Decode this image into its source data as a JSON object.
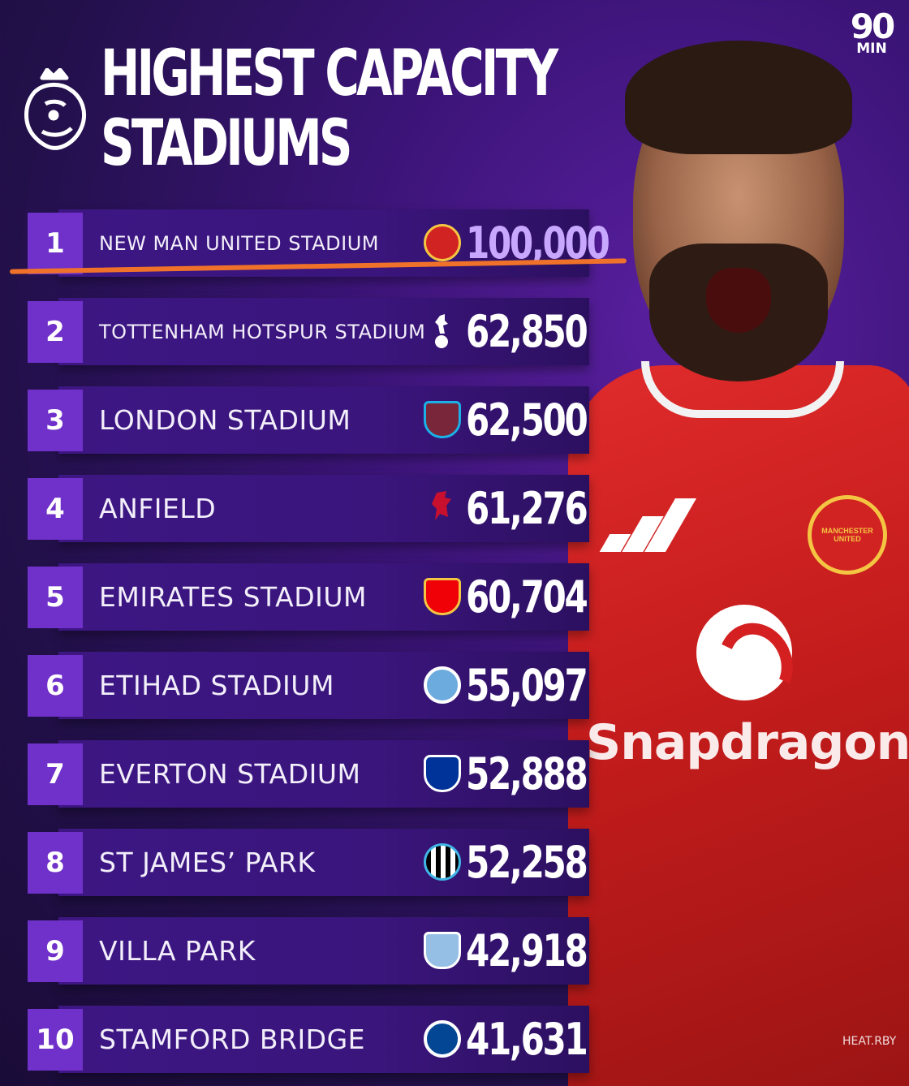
{
  "header": {
    "title_line1": "HIGHEST CAPACITY",
    "title_line2": "STADIUMS",
    "brand_big": "90",
    "brand_small": "MIN"
  },
  "sponsor": {
    "text": "Snapdragon"
  },
  "crest_text": "MANCHESTER UNITED",
  "credit": "HEAT.RBY",
  "colors": {
    "background": "#2a0f5a",
    "bar": "#3d1683",
    "rank_box": "#6f31c9",
    "highlight": "#f0722a",
    "first_value": "#c8a7ff",
    "shirt": "#d22323"
  },
  "stadiums": [
    {
      "rank": "1",
      "name": "NEW MAN UNITED STADIUM",
      "capacity": "100,000",
      "club_icon": "man-united-crest-icon"
    },
    {
      "rank": "2",
      "name": "TOTTENHAM HOTSPUR STADIUM",
      "capacity": "62,850",
      "club_icon": "tottenham-cockerel-icon"
    },
    {
      "rank": "3",
      "name": "LONDON STADIUM",
      "capacity": "62,500",
      "club_icon": "west-ham-crest-icon"
    },
    {
      "rank": "4",
      "name": "ANFIELD",
      "capacity": "61,276",
      "club_icon": "liverpool-liverbird-icon"
    },
    {
      "rank": "5",
      "name": "EMIRATES STADIUM",
      "capacity": "60,704",
      "club_icon": "arsenal-crest-icon"
    },
    {
      "rank": "6",
      "name": "ETIHAD STADIUM",
      "capacity": "55,097",
      "club_icon": "man-city-crest-icon"
    },
    {
      "rank": "7",
      "name": "EVERTON STADIUM",
      "capacity": "52,888",
      "club_icon": "everton-crest-icon"
    },
    {
      "rank": "8",
      "name": "ST JAMES’ PARK",
      "capacity": "52,258",
      "club_icon": "newcastle-crest-icon"
    },
    {
      "rank": "9",
      "name": "VILLA PARK",
      "capacity": "42,918",
      "club_icon": "aston-villa-crest-icon"
    },
    {
      "rank": "10",
      "name": "STAMFORD BRIDGE",
      "capacity": "41,631",
      "club_icon": "chelsea-crest-icon"
    }
  ]
}
